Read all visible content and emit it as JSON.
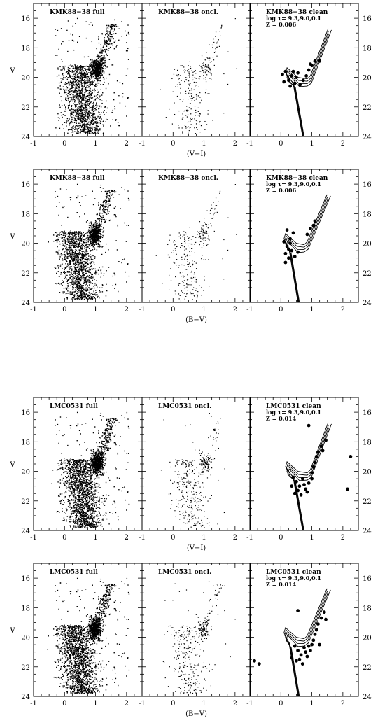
{
  "figure": {
    "rows": [
      {
        "xlabel": "(V−I)",
        "ylabel": "V",
        "panels": [
          {
            "title": "KMK88−38 full",
            "kind": "full"
          },
          {
            "title": "KMK88−38 oncl.",
            "kind": "oncl"
          },
          {
            "title": "KMK88−38 clean",
            "kind": "clean",
            "subtitle1": "log τ= 9.3,9.0,0.1",
            "subtitle2": "Z = 0.006"
          }
        ]
      },
      {
        "xlabel": "(B−V)",
        "ylabel": "V",
        "panels": [
          {
            "title": "KMK88−38 full",
            "kind": "full"
          },
          {
            "title": "KMK88−38 oncl.",
            "kind": "oncl"
          },
          {
            "title": "KMK88−38 clean",
            "kind": "clean",
            "subtitle1": "log τ= 9.3,9.0,0.1",
            "subtitle2": "Z = 0.006"
          }
        ]
      },
      {
        "xlabel": "(V−I)",
        "ylabel": "V",
        "panels": [
          {
            "title": "LMC0531 full",
            "kind": "full"
          },
          {
            "title": "LMC0531 oncl.",
            "kind": "oncl"
          },
          {
            "title": "LMC0531 clean",
            "kind": "clean",
            "subtitle1": "log τ= 9.3,9.0,0.1",
            "subtitle2": "Z = 0.014"
          }
        ]
      },
      {
        "xlabel": "(B−V)",
        "ylabel": "V",
        "panels": [
          {
            "title": "LMC0531 full",
            "kind": "full"
          },
          {
            "title": "LMC0531 oncl.",
            "kind": "oncl"
          },
          {
            "title": "LMC0531 clean",
            "kind": "clean",
            "subtitle1": "log τ= 9.3,9.0,0.1",
            "subtitle2": "Z = 0.014"
          }
        ]
      }
    ]
  },
  "chart_data": [
    {
      "type": "scatter",
      "description_key": "KMK88-38 (V-I) color-magnitude diagrams",
      "xlim": [
        -1,
        2.5
      ],
      "ylim": [
        24,
        15
      ],
      "xticks": [
        -1,
        0,
        1,
        2
      ],
      "yticks": [
        16,
        18,
        20,
        22,
        24
      ],
      "clean_points": [
        [
          0.05,
          19.8
        ],
        [
          0.15,
          19.6
        ],
        [
          0.25,
          20.2
        ],
        [
          0.35,
          19.9
        ],
        [
          0.45,
          20.4
        ],
        [
          0.55,
          19.7
        ],
        [
          0.62,
          20.5
        ],
        [
          0.72,
          20.2
        ],
        [
          0.82,
          19.9
        ],
        [
          0.9,
          19.5
        ],
        [
          1.0,
          19.2
        ],
        [
          1.1,
          18.9
        ],
        [
          1.25,
          18.9
        ],
        [
          0.3,
          20.6
        ],
        [
          0.5,
          20.0
        ],
        [
          0.95,
          19.1
        ],
        [
          0.1,
          20.3
        ],
        [
          0.4,
          19.6
        ]
      ],
      "isochrone_ages": [
        9.0,
        9.1,
        9.2,
        9.3
      ],
      "z": 0.006
    },
    {
      "type": "scatter",
      "description_key": "KMK88-38 (B-V) color-magnitude diagrams",
      "xlim": [
        -1,
        2.5
      ],
      "ylim": [
        24,
        15
      ],
      "xticks": [
        -1,
        0,
        1,
        2
      ],
      "yticks": [
        16,
        18,
        20,
        22,
        24
      ],
      "clean_points": [
        [
          0.1,
          19.9
        ],
        [
          0.2,
          20.2
        ],
        [
          0.3,
          19.7
        ],
        [
          0.35,
          20.5
        ],
        [
          0.15,
          20.7
        ],
        [
          0.25,
          21.0
        ],
        [
          0.45,
          20.9
        ],
        [
          0.55,
          20.6
        ],
        [
          0.4,
          19.3
        ],
        [
          0.2,
          19.1
        ],
        [
          0.85,
          19.4
        ],
        [
          0.95,
          19.0
        ],
        [
          1.05,
          18.8
        ],
        [
          1.1,
          18.5
        ],
        [
          0.3,
          20.0
        ],
        [
          0.15,
          21.3
        ],
        [
          0.25,
          20.4
        ]
      ],
      "isochrone_ages": [
        9.0,
        9.1,
        9.2,
        9.3
      ],
      "z": 0.006
    },
    {
      "type": "scatter",
      "description_key": "LMC0531 (V-I) color-magnitude diagrams",
      "xlim": [
        -1,
        2.5
      ],
      "ylim": [
        24,
        15
      ],
      "xticks": [
        -1,
        0,
        1,
        2
      ],
      "yticks": [
        16,
        18,
        20,
        22,
        24
      ],
      "clean_points": [
        [
          0.4,
          20.4
        ],
        [
          0.5,
          20.7
        ],
        [
          0.6,
          21.0
        ],
        [
          0.7,
          20.5
        ],
        [
          0.55,
          21.3
        ],
        [
          0.65,
          21.6
        ],
        [
          0.8,
          21.2
        ],
        [
          0.9,
          20.8
        ],
        [
          1.0,
          20.1
        ],
        [
          1.05,
          19.7
        ],
        [
          1.1,
          19.4
        ],
        [
          1.15,
          19.0
        ],
        [
          1.2,
          18.7
        ],
        [
          1.3,
          18.3
        ],
        [
          1.35,
          18.6
        ],
        [
          0.45,
          21.5
        ],
        [
          0.35,
          21.0
        ],
        [
          0.75,
          20.9
        ],
        [
          0.85,
          21.4
        ],
        [
          1.0,
          20.5
        ],
        [
          2.15,
          21.2
        ],
        [
          2.25,
          19.0
        ],
        [
          1.45,
          17.9
        ],
        [
          0.9,
          16.9
        ]
      ],
      "isochrone_ages": [
        9.0,
        9.1,
        9.2,
        9.3
      ],
      "z": 0.014
    },
    {
      "type": "scatter",
      "description_key": "LMC0531 (B-V) color-magnitude diagrams",
      "xlim": [
        -1,
        2.5
      ],
      "ylim": [
        24,
        15
      ],
      "xticks": [
        -1,
        0,
        1,
        2
      ],
      "yticks": [
        16,
        18,
        20,
        22,
        24
      ],
      "clean_points": [
        [
          0.45,
          20.6
        ],
        [
          0.55,
          20.9
        ],
        [
          0.65,
          21.2
        ],
        [
          0.75,
          20.7
        ],
        [
          0.6,
          21.5
        ],
        [
          0.7,
          21.8
        ],
        [
          0.85,
          21.3
        ],
        [
          0.95,
          20.9
        ],
        [
          1.05,
          20.2
        ],
        [
          1.1,
          19.8
        ],
        [
          1.15,
          19.5
        ],
        [
          1.2,
          19.1
        ],
        [
          1.3,
          18.7
        ],
        [
          1.4,
          18.3
        ],
        [
          1.45,
          18.8
        ],
        [
          0.5,
          21.6
        ],
        [
          0.35,
          21.4
        ],
        [
          0.8,
          21.0
        ],
        [
          0.9,
          20.6
        ],
        [
          1.0,
          20.5
        ],
        [
          -0.85,
          21.6
        ],
        [
          -0.7,
          21.8
        ],
        [
          0.55,
          18.2
        ],
        [
          1.25,
          20.5
        ]
      ],
      "isochrone_ages": [
        9.0,
        9.1,
        9.2,
        9.3
      ],
      "z": 0.014
    }
  ]
}
